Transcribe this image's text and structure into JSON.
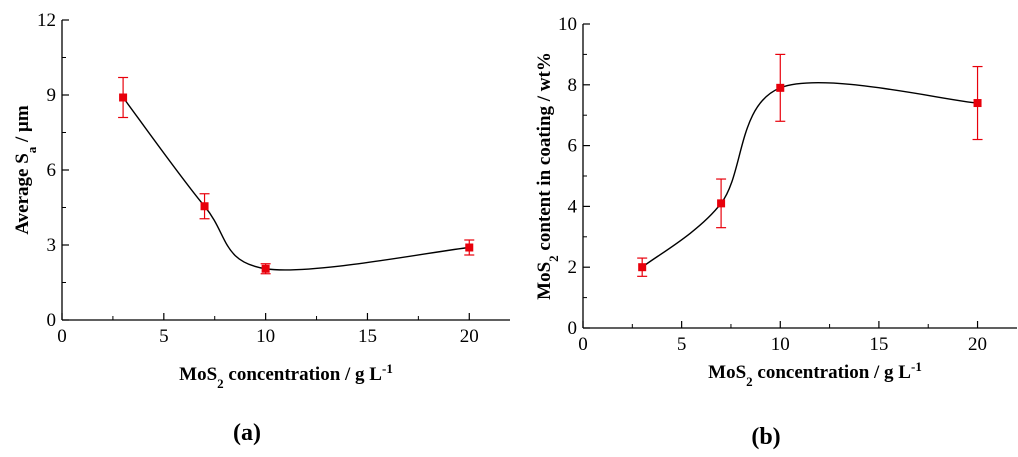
{
  "chart_data": [
    {
      "type": "scatter",
      "panel_label": "(a)",
      "xlabel": {
        "main": "MoS",
        "sub": "2",
        "rest": " concentration / g L",
        "sup": "-1"
      },
      "ylabel": {
        "main": "Average S",
        "sub": "a",
        "rest": " / μm"
      },
      "xlim": [
        0,
        22
      ],
      "ylim": [
        0,
        12
      ],
      "xticks": [
        "0",
        "5",
        "10",
        "15",
        "20"
      ],
      "yticks": [
        "0",
        "3",
        "6",
        "9",
        "12"
      ],
      "series": [
        {
          "x": [
            3,
            7,
            10,
            20
          ],
          "y": [
            8.9,
            4.55,
            2.05,
            2.9
          ],
          "err": [
            0.8,
            0.5,
            0.2,
            0.3
          ]
        }
      ],
      "marker_color": "#e8000b",
      "line_color": "#000000"
    },
    {
      "type": "scatter",
      "panel_label": "(b)",
      "xlabel": {
        "main": "MoS",
        "sub": "2",
        "rest": " concentration / g L",
        "sup": "-1"
      },
      "ylabel": {
        "main": "MoS",
        "sub": "2",
        "rest": " content in coating / wt%"
      },
      "xlim": [
        0,
        22
      ],
      "ylim": [
        0,
        10
      ],
      "xticks": [
        "0",
        "5",
        "10",
        "15",
        "20"
      ],
      "yticks": [
        "0",
        "2",
        "4",
        "6",
        "8",
        "10"
      ],
      "series": [
        {
          "x": [
            3,
            7,
            10,
            20
          ],
          "y": [
            2.0,
            4.1,
            7.9,
            7.4
          ],
          "err": [
            0.3,
            0.8,
            1.1,
            1.2
          ]
        }
      ],
      "marker_color": "#e8000b",
      "line_color": "#000000"
    }
  ]
}
